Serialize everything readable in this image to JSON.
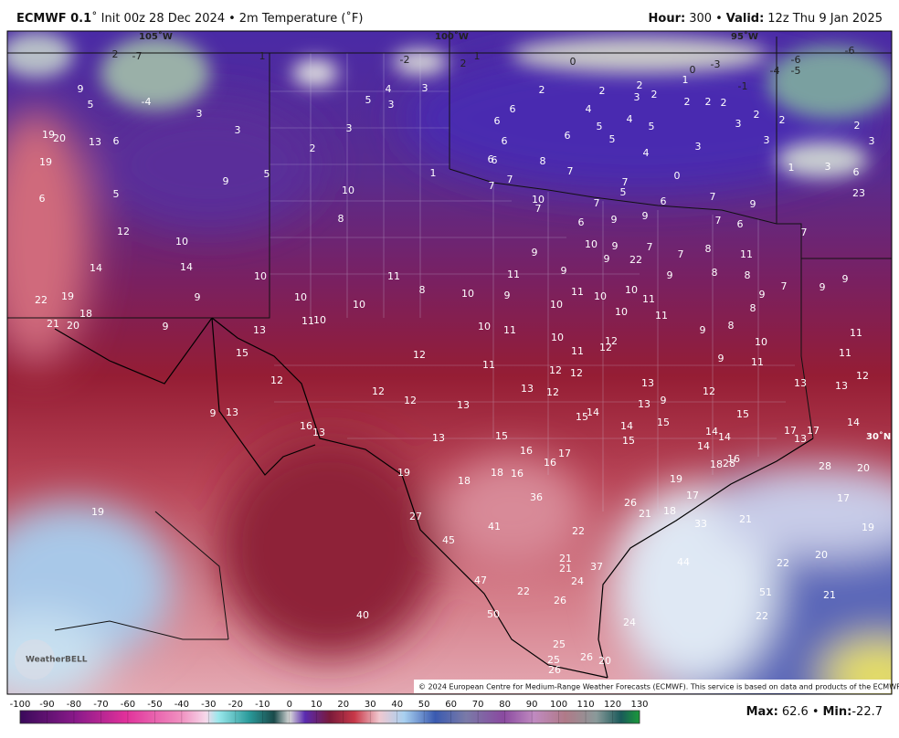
{
  "header": {
    "model": "ECMWF 0.1",
    "degree": "˚",
    "init": "Init 00z 28 Dec 2024",
    "sep": "•",
    "field": "2m Temperature (˚F)",
    "hour_label": "Hour:",
    "hour": "300",
    "valid_label": "Valid:",
    "valid": "12z Thu 9 Jan 2025"
  },
  "map_labels": [
    "105˚W",
    "100˚W",
    "95˚W",
    "30˚N"
  ],
  "logo": "WeatherBELL",
  "copyright": "© 2024 European Centre for Medium-Range Weather Forecasts (ECMWF). This service is based on data and products of the ECMWF.",
  "map": {
    "values": [
      2,
      -7,
      1,
      -2,
      2,
      1,
      0,
      0,
      -3,
      -4,
      -5,
      -6,
      -6,
      -1,
      9,
      5,
      -4,
      3,
      3,
      5,
      4,
      3,
      3,
      3,
      2,
      2,
      2,
      2,
      3,
      2,
      1,
      2,
      2,
      2,
      2,
      2,
      3,
      3,
      2,
      3,
      6,
      6,
      4,
      4,
      5,
      5,
      6,
      5,
      6,
      4,
      3,
      19,
      20,
      13,
      6,
      19,
      6,
      6,
      8,
      7,
      7,
      1,
      5,
      9,
      7,
      7,
      5,
      0,
      1,
      3,
      6,
      23,
      6,
      5,
      10,
      10,
      7,
      7,
      6,
      7,
      9,
      9,
      9,
      6,
      7,
      6,
      7,
      8,
      12,
      10,
      10,
      9,
      7,
      8,
      7,
      11,
      9,
      9,
      22,
      14,
      14,
      9,
      10,
      11,
      11,
      9,
      9,
      8,
      8,
      9,
      7,
      9,
      8,
      10,
      9,
      11,
      10,
      10,
      11,
      9,
      22,
      19,
      10,
      10,
      10,
      10,
      11,
      8,
      18,
      21,
      20,
      9,
      11,
      10,
      10,
      11,
      9,
      8,
      13,
      10,
      12,
      11,
      11,
      12,
      15,
      12,
      10,
      11,
      9,
      11,
      11,
      12,
      12,
      12,
      12,
      12,
      13,
      12,
      13,
      13,
      13,
      12,
      12,
      13,
      13,
      9,
      9,
      13,
      14,
      15,
      15,
      14,
      14,
      15,
      17,
      17,
      13,
      16,
      13,
      13,
      15,
      14,
      14,
      15,
      14,
      16,
      17,
      16,
      16,
      18,
      28,
      28,
      20,
      19,
      18,
      18,
      16,
      19,
      36,
      17,
      17,
      26,
      19,
      21,
      18,
      27,
      33,
      21,
      41,
      19,
      22,
      45,
      20,
      21,
      21,
      37,
      44,
      22,
      24,
      47,
      51,
      21,
      22,
      26,
      50,
      22,
      40,
      24,
      25,
      25,
      26,
      20,
      26
    ]
  },
  "colorbar": {
    "ticks": [
      -100,
      -90,
      -80,
      -70,
      -60,
      -50,
      -40,
      -30,
      -20,
      -10,
      0,
      10,
      20,
      30,
      40,
      50,
      60,
      70,
      80,
      90,
      100,
      110,
      120,
      130
    ]
  },
  "stats": {
    "max_label": "Max:",
    "max": 62.6,
    "sep": "•",
    "min_label": "Min:",
    "min": -22.7
  }
}
